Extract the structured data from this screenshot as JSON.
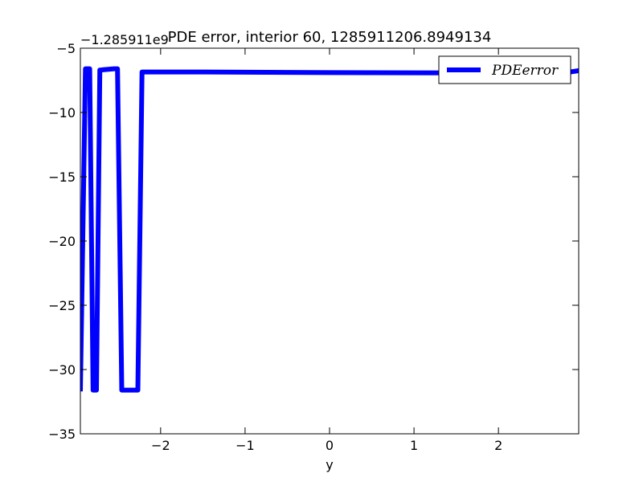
{
  "chart_data": {
    "type": "line",
    "title": "PDE error, interior 60, 1285911206.8949134",
    "offset_label": "−1.285911e9",
    "xlabel": "y",
    "ylabel": "",
    "xlim": [
      -2.95,
      2.95
    ],
    "ylim": [
      -35,
      -5
    ],
    "x_ticks": [
      -2,
      -1,
      0,
      1,
      2
    ],
    "x_tick_labels": [
      "−2",
      "−1",
      "0",
      "1",
      "2"
    ],
    "y_ticks": [
      -35,
      -30,
      -25,
      -20,
      -15,
      -10,
      -5
    ],
    "y_tick_labels": [
      "−35",
      "−30",
      "−25",
      "−20",
      "−15",
      "−10",
      "−5"
    ],
    "grid": false,
    "legend_position": "top-right",
    "series": [
      {
        "name": "PDEerror",
        "legend_label": "PDEerror",
        "color": "#0000ff",
        "x": [
          -2.95,
          -2.89,
          -2.84,
          -2.8,
          -2.76,
          -2.72,
          -2.55,
          -2.51,
          -2.46,
          -2.31,
          -2.27,
          -2.22,
          -1.5,
          0,
          1.5,
          2.4,
          2.6,
          2.8,
          2.95
        ],
        "y": [
          -31.7,
          -6.6,
          -6.6,
          -31.6,
          -31.6,
          -6.7,
          -6.6,
          -6.6,
          -31.6,
          -31.6,
          -31.6,
          -6.85,
          -6.85,
          -6.9,
          -6.92,
          -6.93,
          -6.92,
          -6.9,
          -6.75
        ]
      }
    ]
  }
}
